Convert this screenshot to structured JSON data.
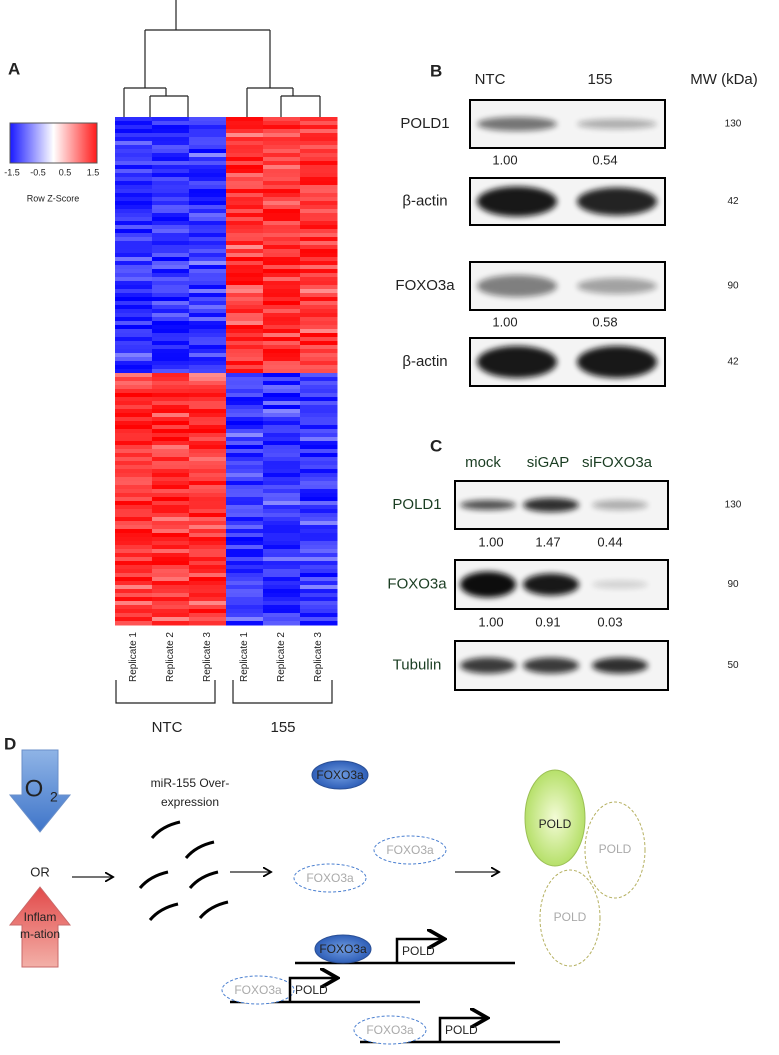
{
  "panel_a": {
    "label": "A",
    "color_key": {
      "ticks": [
        "-1.5",
        "-0.5",
        "0.5",
        "1.5"
      ],
      "title": "Row Z-Score"
    },
    "columns": [
      "Replicate 1",
      "Replicate 2",
      "Replicate 3",
      "Replicate 1",
      "Replicate 2",
      "Replicate 3"
    ],
    "groups": [
      "NTC",
      "155"
    ]
  },
  "panel_b": {
    "label": "B",
    "lanes": [
      "NTC",
      "155"
    ],
    "mw_header": "MW (kDa)",
    "blots": [
      {
        "name": "POLD1",
        "mw": "130",
        "quant": [
          "1.00",
          "0.54"
        ]
      },
      {
        "name": "β-actin",
        "mw": "42"
      },
      {
        "name": "FOXO3a",
        "mw": "90",
        "quant": [
          "1.00",
          "0.58"
        ]
      },
      {
        "name": "β-actin",
        "mw": "42"
      }
    ]
  },
  "panel_c": {
    "label": "C",
    "lanes": [
      "mock",
      "siGAP",
      "siFOXO3a"
    ],
    "blots": [
      {
        "name": "POLD1",
        "mw": "130",
        "quant": [
          "1.00",
          "1.47",
          "0.44"
        ]
      },
      {
        "name": "FOXO3a",
        "mw": "90",
        "quant": [
          "1.00",
          "0.91",
          "0.03"
        ]
      },
      {
        "name": "Tubulin",
        "mw": "50"
      }
    ]
  },
  "panel_d": {
    "label": "D",
    "oxygen": {
      "symbol": "O",
      "subscript": "2"
    },
    "or": "OR",
    "inflammation": [
      "Inflam",
      "m-ation"
    ],
    "mirna": [
      "miR-155 Over-",
      "expression"
    ],
    "foxo3a": "FOXO3a",
    "pold_protein": "POLD",
    "gene": "POLD"
  }
}
